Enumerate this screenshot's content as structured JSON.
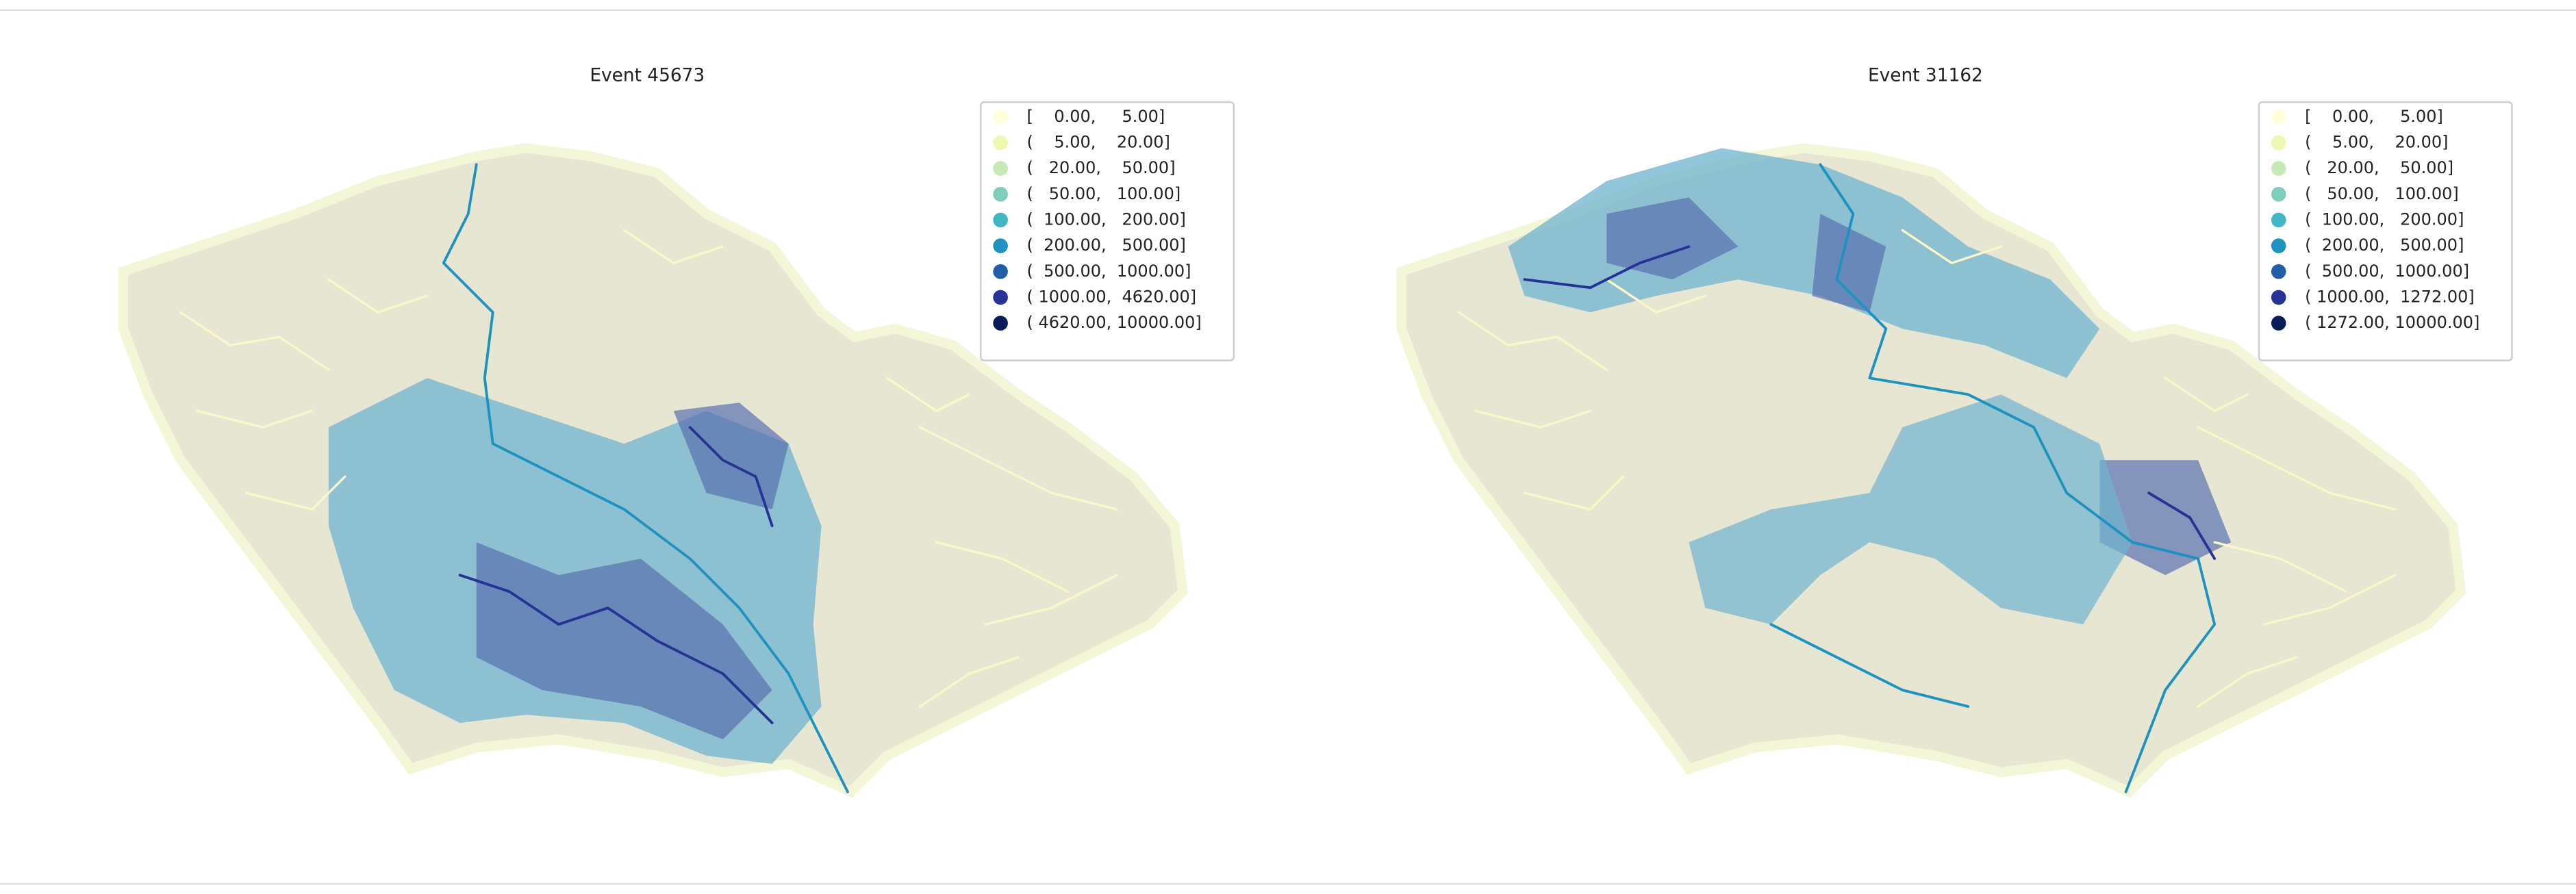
{
  "maps": [
    {
      "title": "Event 45673",
      "legend": [
        "[    0.00,     5.00]",
        "(    5.00,    20.00]",
        "(   20.00,    50.00]",
        "(   50.00,   100.00]",
        "(  100.00,   200.00]",
        "(  200.00,   500.00]",
        "(  500.00,  1000.00]",
        "( 1000.00,  4620.00]",
        "( 4620.00, 10000.00]"
      ]
    },
    {
      "title": "Event 31162",
      "legend": [
        "[    0.00,     5.00]",
        "(    5.00,    20.00]",
        "(   20.00,    50.00]",
        "(   50.00,   100.00]",
        "(  100.00,   200.00]",
        "(  200.00,   500.00]",
        "(  500.00,  1000.00]",
        "( 1000.00,  1272.00]",
        "( 1272.00, 10000.00]"
      ]
    }
  ]
}
